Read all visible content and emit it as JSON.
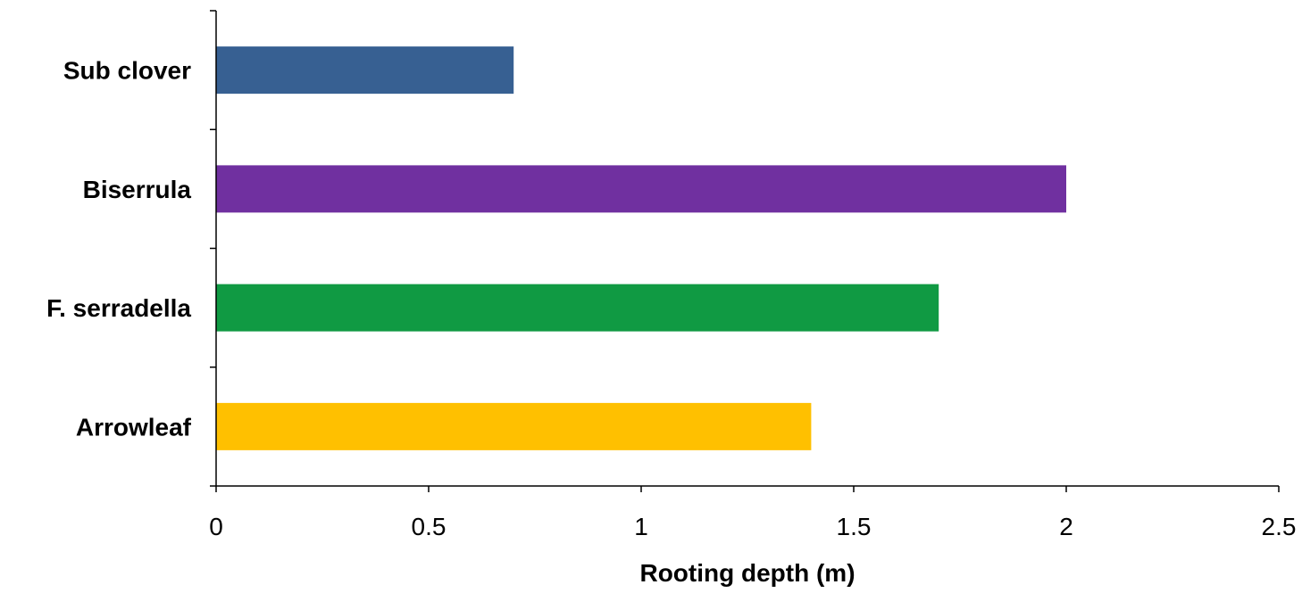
{
  "chart_data": {
    "type": "bar",
    "orientation": "horizontal",
    "categories": [
      "Sub clover",
      "Biserrula",
      "F. serradella",
      "Arrowleaf"
    ],
    "values": [
      0.7,
      2.0,
      1.7,
      1.4
    ],
    "colors": [
      "#376092",
      "#7030A0",
      "#109A43",
      "#FFC000"
    ],
    "xlabel": "Rooting depth (m)",
    "ylabel": "",
    "title": "",
    "xlim": [
      0,
      2.5
    ],
    "xticks": [
      0,
      0.5,
      1,
      1.5,
      2,
      2.5
    ],
    "xtick_labels": [
      "0",
      "0.5",
      "1",
      "1.5",
      "2",
      "2.5"
    ],
    "grid": false,
    "legend": "none"
  }
}
